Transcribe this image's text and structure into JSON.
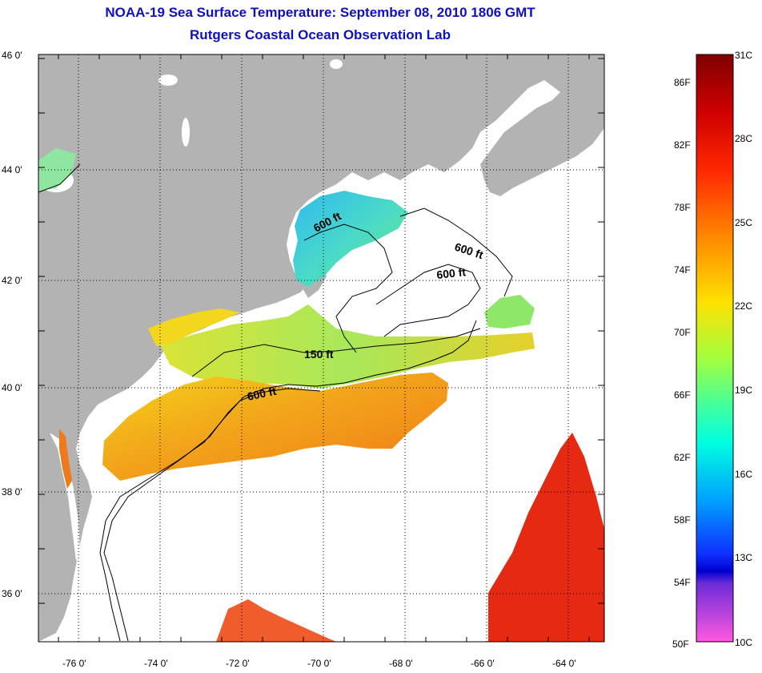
{
  "header": {
    "title": "NOAA-19 Sea Surface Temperature:  September 08, 2010 1806 GMT",
    "subtitle": "Rutgers Coastal Ocean Observation Lab"
  },
  "map": {
    "lat_labels": [
      "46 0'",
      "44 0'",
      "42 0'",
      "40 0'",
      "38 0'",
      "36 0'"
    ],
    "lon_labels": [
      "-76 0'",
      "-74 0'",
      "-72 0'",
      "-70 0'",
      "-68 0'",
      "-66 0'",
      "-64 0'"
    ],
    "contour_labels": [
      "600 ft",
      "600 ft",
      "600 ft",
      "150 ft",
      "600 ft"
    ],
    "colors": {
      "land": "#b3b3b3",
      "water_nodata": "#ffffff",
      "grid": "#000000"
    }
  },
  "colorbar": {
    "fahrenheit_labels": [
      "86F",
      "82F",
      "78F",
      "74F",
      "70F",
      "66F",
      "62F",
      "58F",
      "54F",
      "50F"
    ],
    "celsius_labels": [
      "31C",
      "28C",
      "25C",
      "22C",
      "19C",
      "16C",
      "13C",
      "10C"
    ]
  }
}
